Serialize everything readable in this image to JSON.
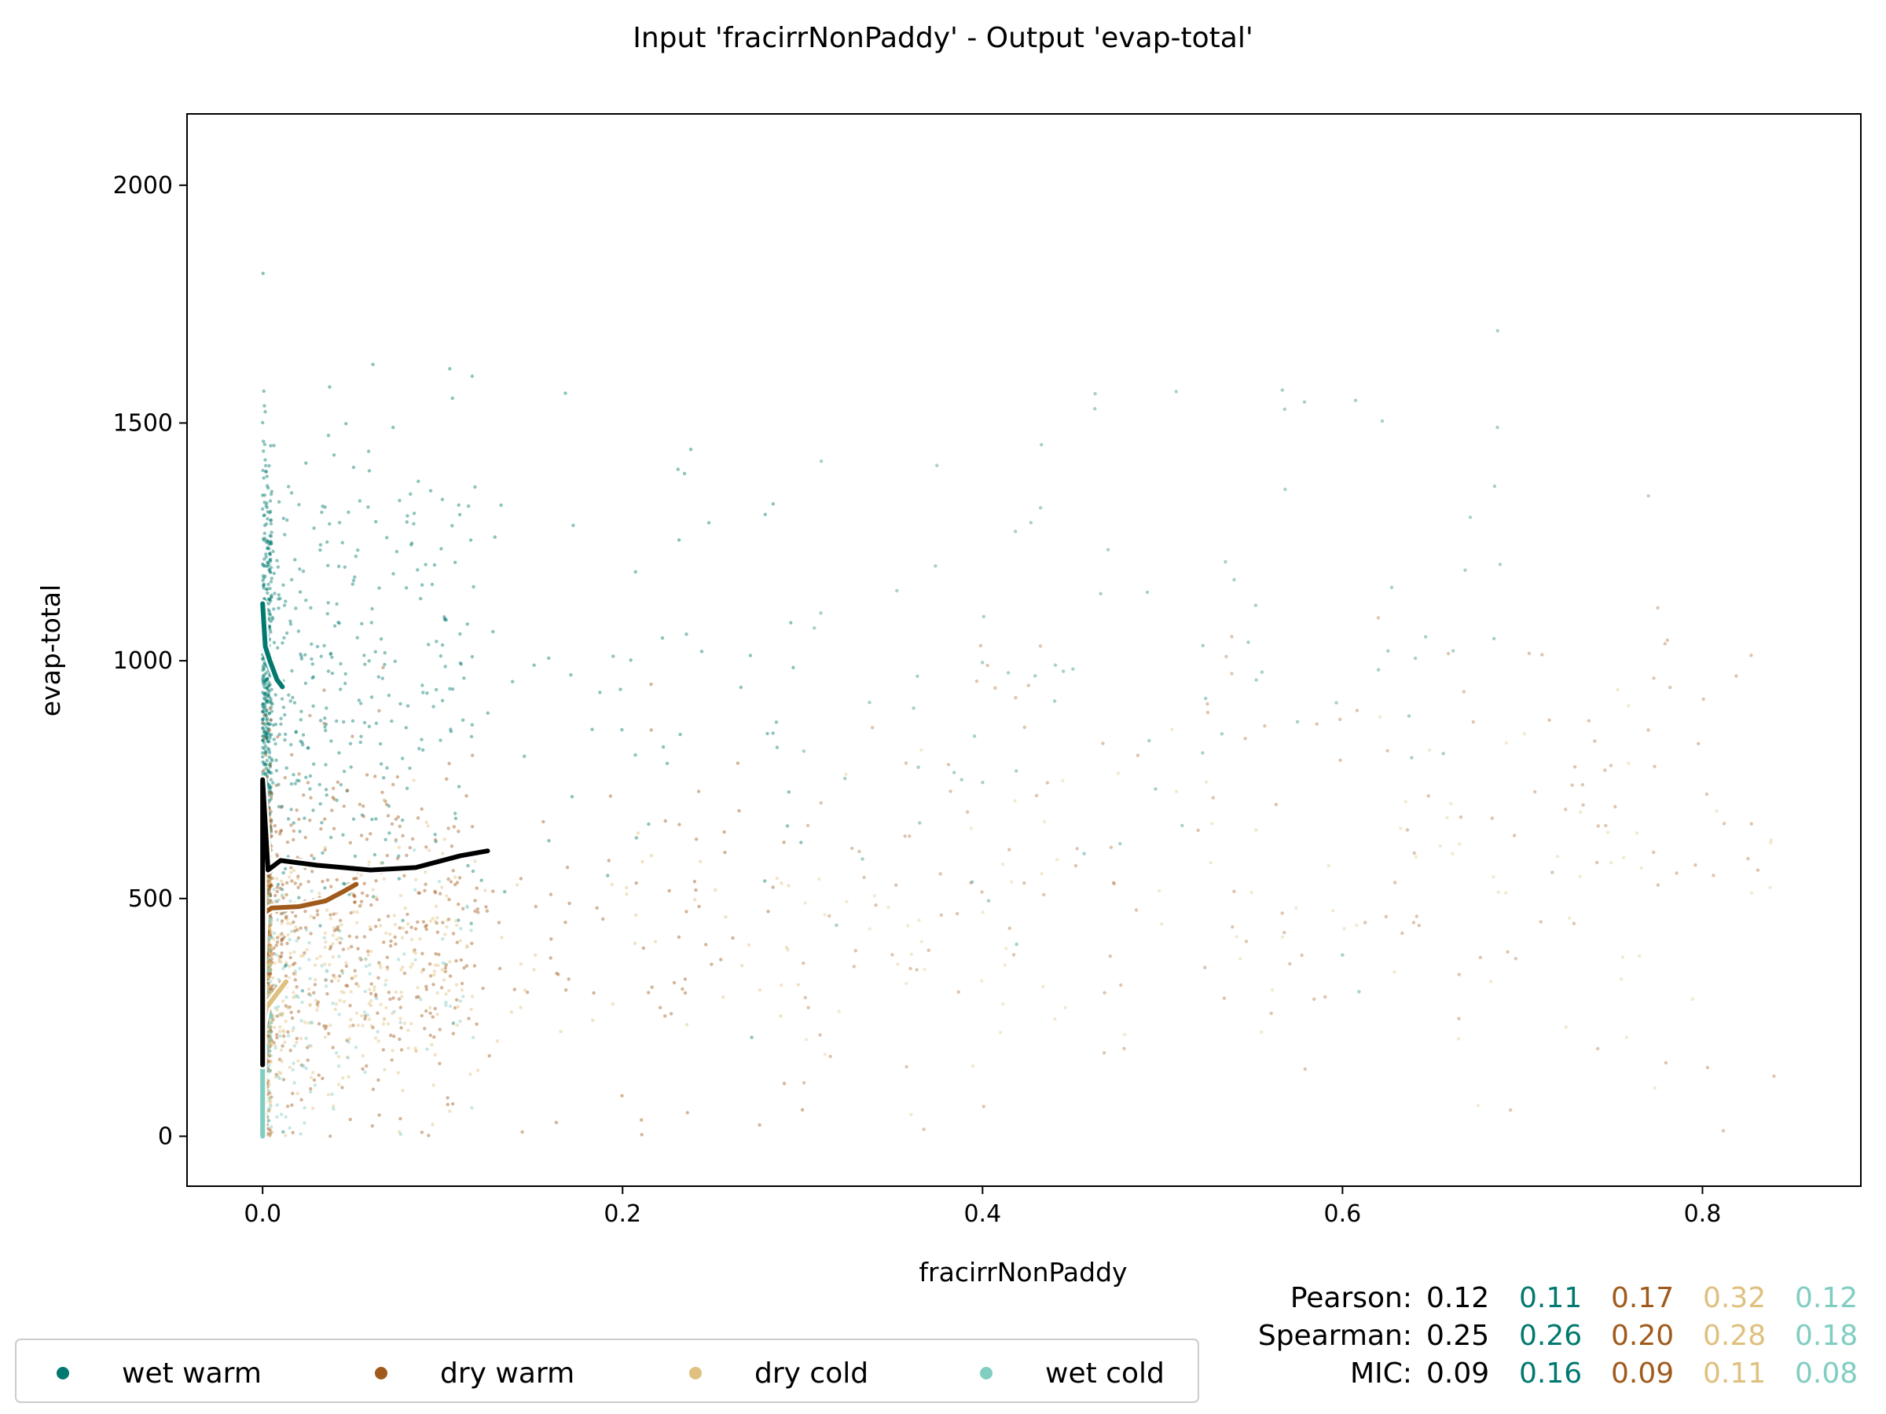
{
  "chart_data": {
    "type": "scatter",
    "title": "Input 'fracirrNonPaddy' - Output 'evap-total'",
    "xlabel": "fracirrNonPaddy",
    "ylabel": "evap-total",
    "xlim": [
      -0.042,
      0.888
    ],
    "ylim": [
      -105,
      2150
    ],
    "xticks": [
      "0.0",
      "0.2",
      "0.4",
      "0.6",
      "0.8"
    ],
    "yticks": [
      "0",
      "500",
      "1000",
      "1500",
      "2000"
    ],
    "grid": false,
    "legend_position": "bottom-left",
    "colors": {
      "overall": "#000000",
      "wet warm": "#01796f",
      "dry warm": "#a05a1c",
      "dry cold": "#dfc07e",
      "wet cold": "#80cdc1"
    },
    "series": [
      {
        "name": "wet warm",
        "color": "#01796f",
        "trend": [
          [
            0.0,
            1120
          ],
          [
            0.0015,
            1030
          ],
          [
            0.004,
            1000
          ],
          [
            0.008,
            960
          ],
          [
            0.011,
            945
          ]
        ],
        "cloud": {
          "x_max": 0.7,
          "y_center": 950,
          "y_spread": 420
        }
      },
      {
        "name": "dry warm",
        "color": "#a05a1c",
        "trend": [
          [
            0.0,
            380
          ],
          [
            0.001,
            470
          ],
          [
            0.005,
            480
          ],
          [
            0.02,
            483
          ],
          [
            0.035,
            495
          ],
          [
            0.045,
            515
          ],
          [
            0.052,
            530
          ]
        ],
        "cloud": {
          "x_max": 0.84,
          "y_center": 420,
          "y_spread": 300
        }
      },
      {
        "name": "dry cold",
        "color": "#dfc07e",
        "trend": [
          [
            0.0,
            230
          ],
          [
            0.002,
            270
          ],
          [
            0.006,
            290
          ],
          [
            0.013,
            325
          ]
        ],
        "cloud": {
          "x_max": 0.84,
          "y_center": 330,
          "y_spread": 220
        }
      },
      {
        "name": "wet cold",
        "color": "#80cdc1",
        "trend": [
          [
            0.0,
            0
          ],
          [
            0.0,
            120
          ],
          [
            0.0,
            320
          ]
        ],
        "cloud": {
          "x_max": 0.05,
          "y_center": 260,
          "y_spread": 200
        }
      }
    ],
    "overall_trend": [
      [
        0.0,
        150
      ],
      [
        0.0,
        490
      ],
      [
        0.0,
        750
      ],
      [
        0.003,
        560
      ],
      [
        0.01,
        580
      ],
      [
        0.03,
        570
      ],
      [
        0.06,
        560
      ],
      [
        0.085,
        565
      ],
      [
        0.11,
        590
      ],
      [
        0.125,
        600
      ]
    ],
    "stats": {
      "Pearson": [
        "0.12",
        "0.11",
        "0.17",
        "0.32",
        "0.12"
      ],
      "Spearman": [
        "0.25",
        "0.26",
        "0.20",
        "0.28",
        "0.18"
      ],
      "MIC": [
        "0.09",
        "0.16",
        "0.09",
        "0.11",
        "0.08"
      ]
    }
  },
  "legend": [
    "wet warm",
    "dry warm",
    "dry cold",
    "wet cold"
  ],
  "stats_labels": [
    "Pearson:",
    "Spearman:",
    "MIC:"
  ]
}
